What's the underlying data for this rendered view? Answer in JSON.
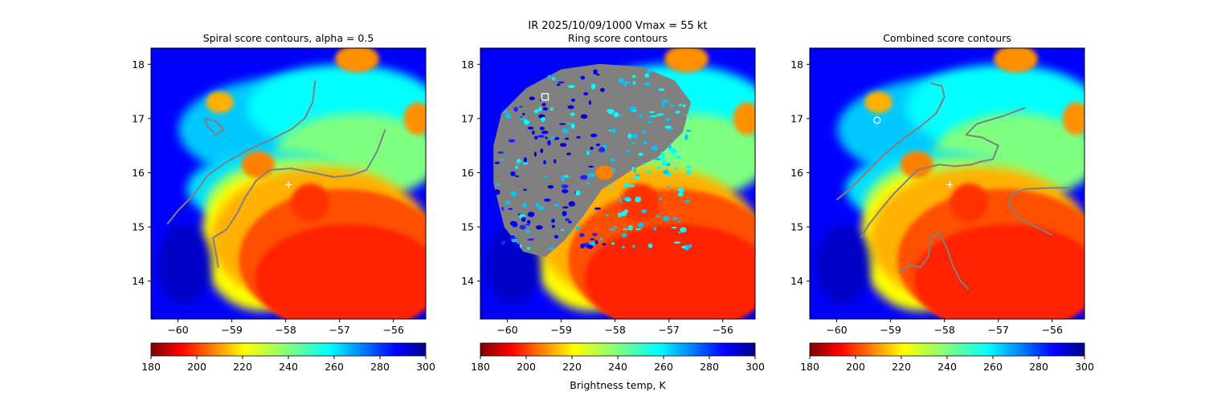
{
  "figure": {
    "suptitle_line1": "IR  2025/10/09/1000    Vmax = 55 kt",
    "colorbar_label": "Brightness temp, K"
  },
  "chart_data": [
    {
      "type": "heatmap",
      "title": "Spiral score contours, alpha =  0.5",
      "xlim": [
        -60.5,
        -55.4
      ],
      "ylim": [
        13.3,
        18.3
      ],
      "xticks": [
        -60,
        -59,
        -58,
        -57,
        -56
      ],
      "xtick_labels": [
        "−60",
        "−59",
        "−58",
        "−57",
        "−56"
      ],
      "yticks": [
        14,
        15,
        16,
        17,
        18
      ],
      "ytick_labels": [
        "14",
        "15",
        "16",
        "17",
        "18"
      ],
      "center": [
        -57.95,
        15.78
      ],
      "contours": [
        [
          [
            -60.2,
            15.05
          ],
          [
            -60.0,
            15.3
          ],
          [
            -59.7,
            15.6
          ],
          [
            -59.45,
            15.95
          ],
          [
            -59.1,
            16.2
          ],
          [
            -58.7,
            16.42
          ],
          [
            -58.3,
            16.6
          ],
          [
            -57.9,
            16.8
          ],
          [
            -57.65,
            17.0
          ],
          [
            -57.5,
            17.3
          ],
          [
            -57.45,
            17.7
          ]
        ],
        [
          [
            -59.25,
            14.25
          ],
          [
            -59.3,
            14.55
          ],
          [
            -59.35,
            14.8
          ],
          [
            -59.1,
            14.95
          ],
          [
            -58.9,
            15.25
          ],
          [
            -58.75,
            15.55
          ],
          [
            -58.55,
            15.85
          ],
          [
            -58.3,
            16.05
          ],
          [
            -57.9,
            16.08
          ],
          [
            -57.5,
            16.0
          ],
          [
            -57.1,
            15.92
          ],
          [
            -56.8,
            15.95
          ],
          [
            -56.5,
            16.05
          ],
          [
            -56.3,
            16.4
          ],
          [
            -56.15,
            16.8
          ]
        ],
        [
          [
            -59.5,
            17.0
          ],
          [
            -59.3,
            16.95
          ],
          [
            -59.15,
            16.8
          ],
          [
            -59.3,
            16.7
          ],
          [
            -59.45,
            16.85
          ],
          [
            -59.5,
            17.0
          ]
        ]
      ],
      "colorbar": {
        "range": [
          180,
          300
        ],
        "ticks": [
          180,
          200,
          220,
          240,
          260,
          280,
          300
        ],
        "tick_labels": [
          "180",
          "200",
          "220",
          "240",
          "260",
          "280",
          "300"
        ],
        "cmap": "jet_r"
      }
    },
    {
      "type": "heatmap",
      "title": "Ring score contours",
      "xlim": [
        -60.5,
        -55.4
      ],
      "ylim": [
        13.3,
        18.3
      ],
      "xticks": [
        -60,
        -59,
        -58,
        -57,
        -56
      ],
      "xtick_labels": [
        "−60",
        "−59",
        "−58",
        "−57",
        "−56"
      ],
      "yticks": [
        14,
        15,
        16,
        17,
        18
      ],
      "ytick_labels": [
        "14",
        "15",
        "16",
        "17",
        "18"
      ],
      "ring_marker": [
        -59.3,
        17.4
      ],
      "contours": [],
      "colorbar": {
        "range": [
          180,
          300
        ],
        "ticks": [
          180,
          200,
          220,
          240,
          260,
          280,
          300
        ],
        "tick_labels": [
          "180",
          "200",
          "220",
          "240",
          "260",
          "280",
          "300"
        ],
        "cmap": "jet_r"
      }
    },
    {
      "type": "heatmap",
      "title": "Combined score contours",
      "xlim": [
        -60.5,
        -55.4
      ],
      "ylim": [
        13.3,
        18.3
      ],
      "xticks": [
        -60,
        -59,
        -58,
        -57,
        -56
      ],
      "xtick_labels": [
        "−60",
        "−59",
        "−58",
        "−57",
        "−56"
      ],
      "yticks": [
        14,
        15,
        16,
        17,
        18
      ],
      "ytick_labels": [
        "14",
        "15",
        "16",
        "17",
        "18"
      ],
      "center": [
        -57.9,
        15.78
      ],
      "combined_marker": [
        -59.25,
        16.97
      ],
      "contours": [
        [
          [
            -60.0,
            15.5
          ],
          [
            -59.7,
            15.75
          ],
          [
            -59.4,
            16.05
          ],
          [
            -59.1,
            16.35
          ],
          [
            -58.8,
            16.6
          ],
          [
            -58.45,
            16.85
          ],
          [
            -58.15,
            17.1
          ],
          [
            -58.0,
            17.4
          ],
          [
            -58.05,
            17.6
          ],
          [
            -58.25,
            17.65
          ]
        ],
        [
          [
            -59.55,
            14.8
          ],
          [
            -59.4,
            15.05
          ],
          [
            -59.2,
            15.3
          ],
          [
            -58.95,
            15.6
          ],
          [
            -58.7,
            15.85
          ],
          [
            -58.5,
            16.05
          ],
          [
            -58.1,
            16.15
          ],
          [
            -57.8,
            16.12
          ],
          [
            -57.5,
            16.15
          ],
          [
            -57.35,
            16.2
          ],
          [
            -57.1,
            16.25
          ],
          [
            -57.0,
            16.5
          ],
          [
            -57.3,
            16.65
          ],
          [
            -57.6,
            16.7
          ],
          [
            -57.4,
            16.9
          ],
          [
            -56.9,
            17.05
          ],
          [
            -56.5,
            17.2
          ]
        ],
        [
          [
            -58.85,
            14.15
          ],
          [
            -58.65,
            14.3
          ],
          [
            -58.45,
            14.25
          ],
          [
            -58.3,
            14.45
          ],
          [
            -58.25,
            14.8
          ],
          [
            -58.1,
            14.9
          ],
          [
            -57.95,
            14.6
          ],
          [
            -57.85,
            14.3
          ],
          [
            -57.7,
            14.0
          ],
          [
            -57.55,
            13.85
          ]
        ],
        [
          [
            -56.0,
            14.85
          ],
          [
            -56.3,
            15.0
          ],
          [
            -56.6,
            15.15
          ],
          [
            -56.8,
            15.4
          ],
          [
            -56.75,
            15.6
          ],
          [
            -56.5,
            15.7
          ],
          [
            -56.0,
            15.72
          ],
          [
            -55.6,
            15.72
          ]
        ]
      ],
      "colorbar": {
        "range": [
          180,
          300
        ],
        "ticks": [
          180,
          200,
          220,
          240,
          260,
          280,
          300
        ],
        "tick_labels": [
          "180",
          "200",
          "220",
          "240",
          "260",
          "280",
          "300"
        ],
        "cmap": "jet_r"
      }
    }
  ]
}
